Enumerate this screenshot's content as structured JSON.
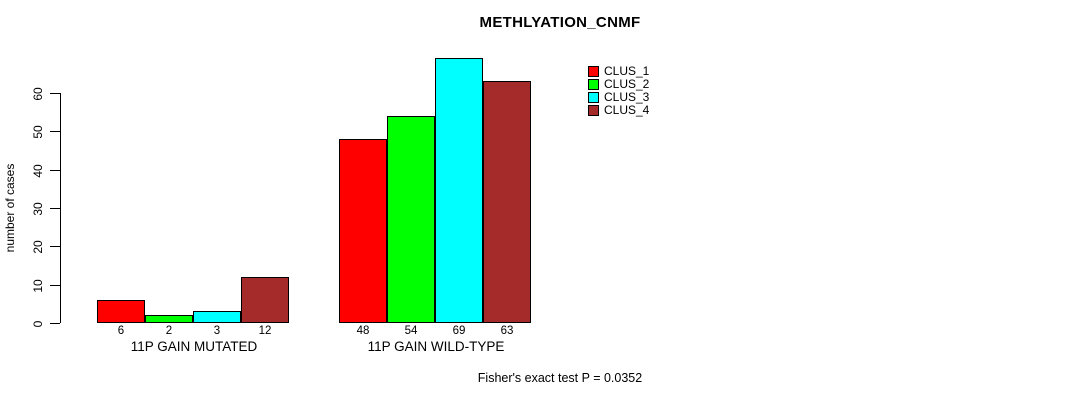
{
  "chart_data": {
    "type": "bar",
    "title": "METHLYATION_CNMF",
    "ylabel": "number of cases",
    "ylim": [
      0,
      60
    ],
    "yticks": [
      0,
      10,
      20,
      30,
      40,
      50,
      60
    ],
    "grid": false,
    "categories": [
      "11P GAIN MUTATED",
      "11P GAIN WILD-TYPE"
    ],
    "series": [
      {
        "name": "CLUS_1",
        "color": "#FF0000",
        "values": [
          6,
          48
        ]
      },
      {
        "name": "CLUS_2",
        "color": "#00FF00",
        "values": [
          2,
          54
        ]
      },
      {
        "name": "CLUS_3",
        "color": "#00FFFF",
        "values": [
          3,
          69
        ]
      },
      {
        "name": "CLUS_4",
        "color": "#A52A2A",
        "values": [
          12,
          63
        ]
      }
    ],
    "bar_value_labels": true,
    "legend_position": "top-right",
    "annotation": "Fisher's exact test P = 0.0352"
  }
}
